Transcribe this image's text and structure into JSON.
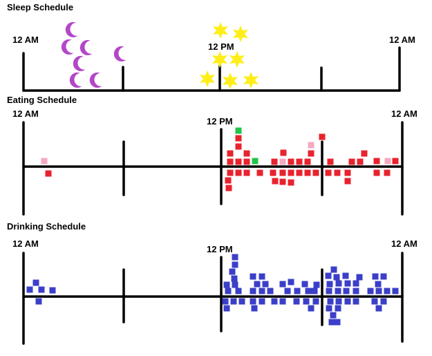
{
  "sleep": {
    "title": "Sleep Schedule",
    "label_left": "12 AM",
    "label_mid": "12 PM",
    "label_right": "12 AM",
    "moon_icon": "crescent-moon-icon",
    "sun_icon": "sun-icon",
    "moon_color": "#b347c8",
    "sun_color": "#ffee1a"
  },
  "eating": {
    "title": "Eating Schedule",
    "label_left": "12 AM",
    "label_mid": "12 PM",
    "label_right": "12 AM",
    "colors": {
      "red": "#e8232e",
      "pink": "#f6a9c1",
      "green": "#22c44a"
    }
  },
  "drinking": {
    "title": "Drinking Schedule",
    "label_left": "12 AM",
    "label_mid": "12 PM",
    "label_right": "12 AM",
    "color": "#3b3fc8"
  }
}
